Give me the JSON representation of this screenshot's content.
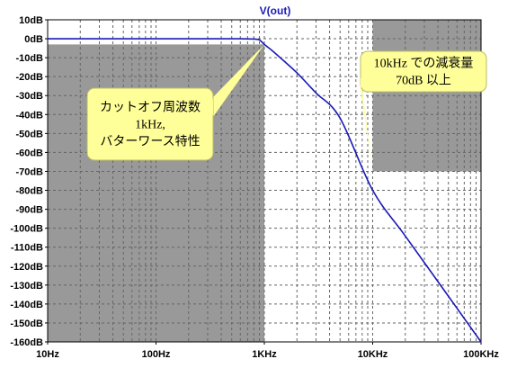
{
  "chart_data": {
    "type": "line",
    "title": "V(out)",
    "x_scale": "log",
    "xlim": [
      10,
      100000
    ],
    "ylim": [
      -160,
      10
    ],
    "x_ticks": [
      {
        "value": 10,
        "label": "10Hz"
      },
      {
        "value": 100,
        "label": "100Hz"
      },
      {
        "value": 1000,
        "label": "1KHz"
      },
      {
        "value": 10000,
        "label": "10KHz"
      },
      {
        "value": 100000,
        "label": "100KHz"
      }
    ],
    "y_ticks": [
      {
        "value": 10,
        "label": "10dB"
      },
      {
        "value": 0,
        "label": "0dB"
      },
      {
        "value": -10,
        "label": "-10dB"
      },
      {
        "value": -20,
        "label": "-20dB"
      },
      {
        "value": -30,
        "label": "-30dB"
      },
      {
        "value": -40,
        "label": "-40dB"
      },
      {
        "value": -50,
        "label": "-50dB"
      },
      {
        "value": -60,
        "label": "-60dB"
      },
      {
        "value": -70,
        "label": "-70dB"
      },
      {
        "value": -80,
        "label": "-80dB"
      },
      {
        "value": -90,
        "label": "-90dB"
      },
      {
        "value": -100,
        "label": "-100dB"
      },
      {
        "value": -110,
        "label": "-110dB"
      },
      {
        "value": -120,
        "label": "-120dB"
      },
      {
        "value": -130,
        "label": "-130dB"
      },
      {
        "value": -140,
        "label": "-140dB"
      },
      {
        "value": -150,
        "label": "-150dB"
      },
      {
        "value": -160,
        "label": "-160dB"
      }
    ],
    "grid": true,
    "series": [
      {
        "name": "V(out)",
        "color": "#1a1ab8",
        "x": [
          10,
          100,
          200,
          400,
          600,
          800,
          900,
          1000,
          1200,
          1500,
          2000,
          3000,
          5000,
          10000,
          20000,
          50000,
          100000
        ],
        "y": [
          0,
          0,
          0,
          0,
          -0.01,
          -0.2,
          -0.6,
          -3.0,
          -6.6,
          -11.5,
          -18.0,
          -28.6,
          -41.9,
          -80.0,
          -104.1,
          -135.9,
          -160.0
        ]
      }
    ],
    "shaded_regions": [
      {
        "x": [
          10,
          1000
        ],
        "y": [
          -160,
          -3
        ]
      },
      {
        "x": [
          10000,
          100000
        ],
        "y": [
          -70,
          10
        ]
      }
    ],
    "annotations": [
      {
        "lines": [
          "カットオフ周波数",
          "1kHz,",
          "バターワース特性"
        ],
        "points_to": [
          1000,
          -3
        ]
      },
      {
        "lines": [
          "10kHz での減衰量",
          "70dB 以上"
        ],
        "points_to": [
          10000,
          -70
        ]
      }
    ],
    "colors": {
      "shade": "#999999",
      "callout_fill": "#ffff99",
      "grid": "#666666",
      "curve": "#1a1ab8"
    }
  }
}
